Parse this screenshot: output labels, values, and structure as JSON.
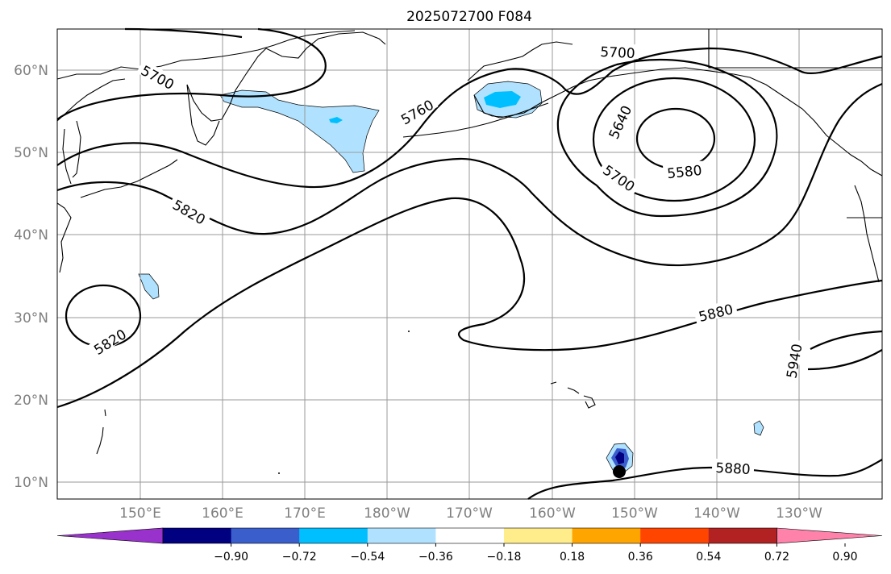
{
  "title": "2025072700 F084",
  "lat_labels": [
    "60°N",
    "50°N",
    "40°N",
    "30°N",
    "20°N",
    "10°N"
  ],
  "lon_labels": [
    "150°E",
    "160°E",
    "170°E",
    "180°W",
    "170°W",
    "160°W",
    "150°W",
    "140°W",
    "130°W"
  ],
  "contour_labels": [
    {
      "id": "c5700a",
      "text": "5700"
    },
    {
      "id": "c5700b",
      "text": "5700"
    },
    {
      "id": "c5760",
      "text": "5760"
    },
    {
      "id": "c5640",
      "text": "5640"
    },
    {
      "id": "c5580",
      "text": "5580"
    },
    {
      "id": "c5700c",
      "text": "5700"
    },
    {
      "id": "c5820a",
      "text": "5820"
    },
    {
      "id": "c5820b",
      "text": "5820"
    },
    {
      "id": "c5880a",
      "text": "5880"
    },
    {
      "id": "c5880b",
      "text": "5880"
    },
    {
      "id": "c5940",
      "text": "5940"
    }
  ],
  "colorbar": {
    "colors": [
      "#9932CC",
      "#000080",
      "#3A5FCD",
      "#00BFFF",
      "#B0E2FF",
      "#FFFFFF",
      "#FFEC8B",
      "#FFA500",
      "#FF4500",
      "#B22222",
      "#FF82AB"
    ],
    "ticks": [
      "−0.90",
      "−0.72",
      "−0.54",
      "−0.36",
      "−0.18",
      "0.18",
      "0.36",
      "0.54",
      "0.72",
      "0.90"
    ]
  },
  "fill_colors": {
    "light": "#B0E2FF",
    "medium": "#00BFFF",
    "dark": "#3A5FCD",
    "darkest": "#000080"
  },
  "marker": "storm-center-dot"
}
